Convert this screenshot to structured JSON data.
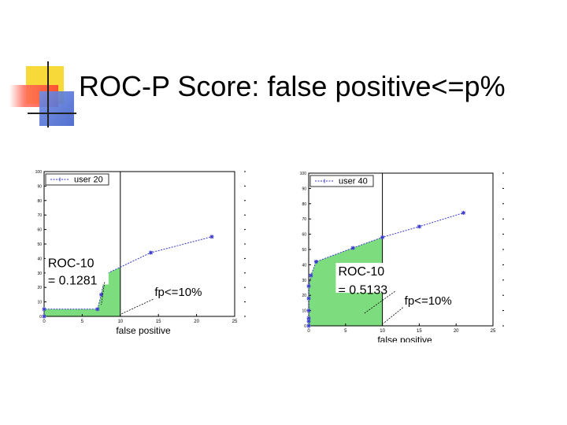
{
  "slide": {
    "title": "ROC-P Score: false positive<=p%"
  },
  "colors": {
    "accent_yellow": "#f7d93a",
    "accent_red": "#ff5a4a",
    "accent_blue": "#4f6fd6",
    "area_fill": "#7ddc7d",
    "series_line": "#3a3ad0"
  },
  "chart_data": [
    {
      "type": "line",
      "xlabel": "false positive",
      "ylabel": "",
      "xlim": [
        0,
        25
      ],
      "ylim": [
        0,
        100
      ],
      "xticks": [
        "0",
        "5",
        "10",
        "15",
        "20",
        "25"
      ],
      "yticks": [
        "0",
        "10",
        "20",
        "30",
        "40",
        "50",
        "60",
        "70",
        "80",
        "90",
        "100"
      ],
      "legend": "top-left",
      "grid": false,
      "series": [
        {
          "name": "user 20",
          "x": [
            0,
            0,
            7,
            7.5,
            8,
            14,
            22
          ],
          "y": [
            0,
            5,
            5,
            15,
            29,
            44,
            55
          ]
        }
      ],
      "shaded_region": {
        "x_max": 10
      },
      "annotations": [
        {
          "text": "ROC-10",
          "data_x": 0.5,
          "data_y": 34
        },
        {
          "text": "= 0.1281",
          "data_x": 0.5,
          "data_y": 22
        },
        {
          "text": "fp<=10%",
          "data_x": 14.5,
          "data_y": 14
        }
      ]
    },
    {
      "type": "line",
      "xlabel": "false positive",
      "ylabel": "",
      "xlim": [
        0,
        25
      ],
      "ylim": [
        0,
        100
      ],
      "xticks": [
        "0",
        "5",
        "10",
        "15",
        "20",
        "25"
      ],
      "yticks": [
        "0",
        "10",
        "20",
        "30",
        "40",
        "50",
        "60",
        "70",
        "80",
        "90",
        "100"
      ],
      "legend": "top-left",
      "grid": false,
      "series": [
        {
          "name": "user 40",
          "x": [
            0,
            0,
            0,
            0,
            0,
            0,
            0.3,
            1,
            6,
            10,
            15,
            21
          ],
          "y": [
            0,
            3,
            5,
            10,
            18,
            26,
            33,
            42,
            51,
            58,
            65,
            74
          ]
        }
      ],
      "shaded_region": {
        "x_max": 10
      },
      "annotations": [
        {
          "text": "ROC-10",
          "data_x": 4,
          "data_y": 33
        },
        {
          "text": "= 0.5133",
          "data_x": 4,
          "data_y": 21
        },
        {
          "text": "fp<=10%",
          "data_x": 13,
          "data_y": 14
        }
      ]
    }
  ]
}
